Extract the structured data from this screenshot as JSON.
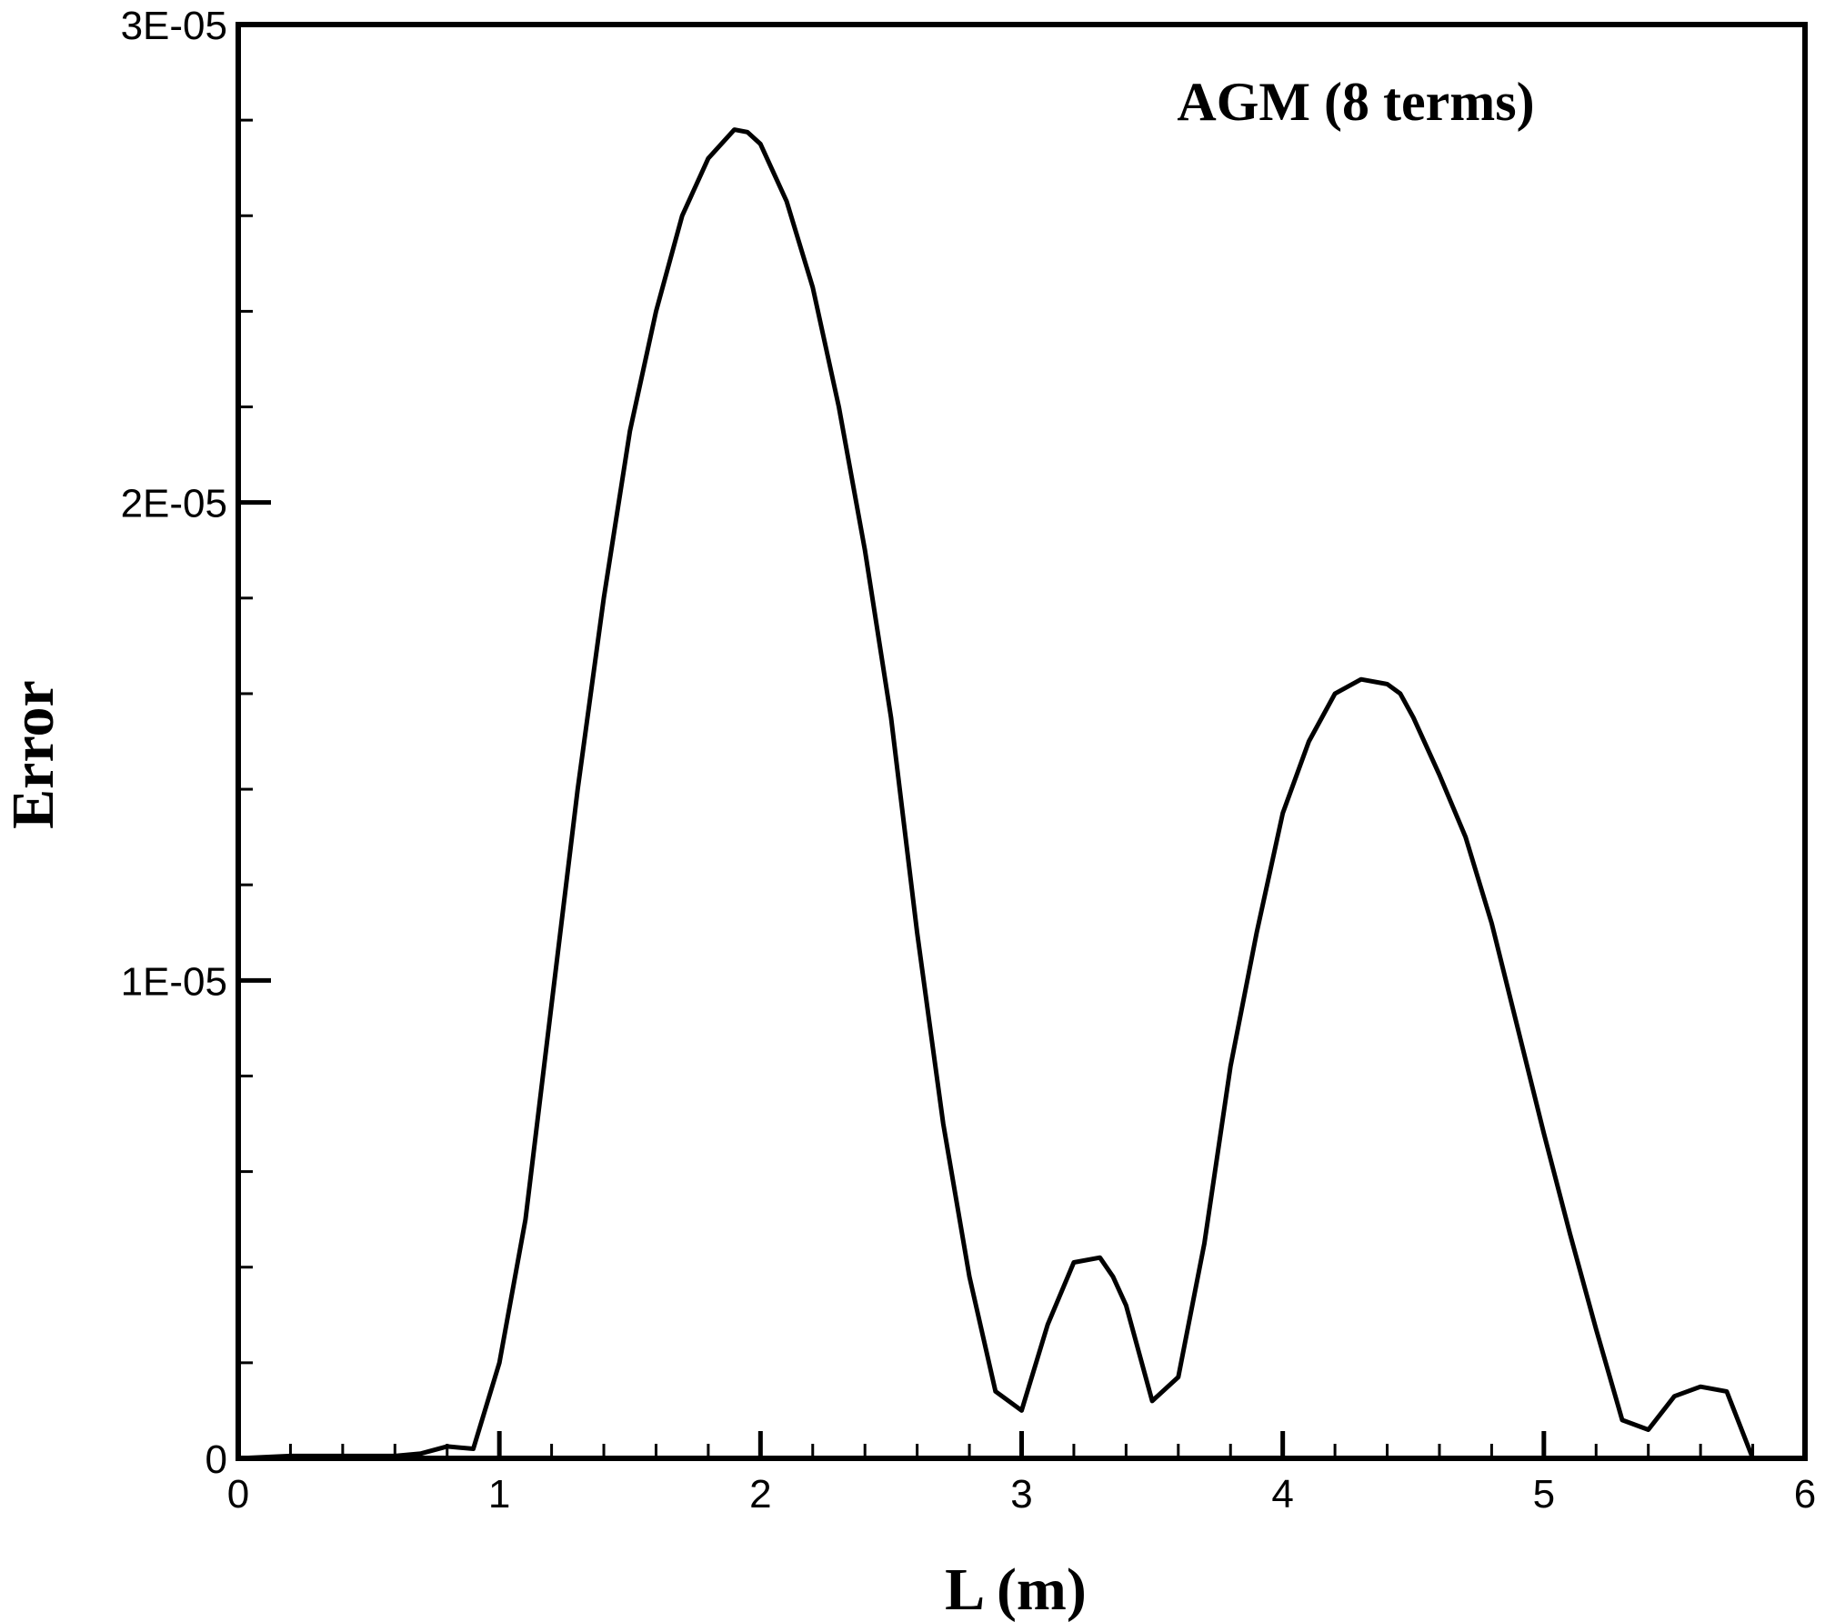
{
  "chart_data": {
    "type": "line",
    "title": "",
    "annotation": "AGM (8 terms)",
    "xlabel": "L (m)",
    "ylabel": "Error",
    "xlim": [
      0,
      6
    ],
    "ylim": [
      0,
      3e-05
    ],
    "xticks": [
      0,
      1,
      2,
      3,
      4,
      5,
      6
    ],
    "xtick_labels": [
      "0",
      "1",
      "2",
      "3",
      "4",
      "5",
      "6"
    ],
    "yticks": [
      0,
      1e-05,
      2e-05,
      3e-05
    ],
    "ytick_labels": [
      "0",
      "1E-05",
      "2E-05",
      "3E-05"
    ],
    "x_minor_step": 0.2,
    "y_minor_step": 2e-06,
    "grid": false,
    "legend": "none",
    "series": [
      {
        "color": "#000000",
        "x": [
          0,
          0.2,
          0.4,
          0.6,
          0.7,
          0.8,
          0.9,
          1.0,
          1.1,
          1.2,
          1.3,
          1.4,
          1.5,
          1.6,
          1.7,
          1.8,
          1.9,
          1.95,
          2.0,
          2.1,
          2.2,
          2.3,
          2.4,
          2.5,
          2.6,
          2.7,
          2.8,
          2.9,
          3.0,
          3.1,
          3.2,
          3.3,
          3.35,
          3.4,
          3.5,
          3.6,
          3.7,
          3.8,
          3.9,
          4.0,
          4.1,
          4.2,
          4.3,
          4.4,
          4.45,
          4.5,
          4.6,
          4.7,
          4.8,
          4.9,
          5.0,
          5.1,
          5.2,
          5.3,
          5.4,
          5.5,
          5.6,
          5.7,
          5.8,
          5.9,
          6.0
        ],
        "y": [
          0,
          5e-08,
          5e-08,
          5e-08,
          1e-07,
          2.5e-07,
          2e-07,
          2e-06,
          5e-06,
          9.5e-06,
          1.4e-05,
          1.8e-05,
          2.15e-05,
          2.4e-05,
          2.6e-05,
          2.72e-05,
          2.78e-05,
          2.775e-05,
          2.75e-05,
          2.63e-05,
          2.45e-05,
          2.2e-05,
          1.9e-05,
          1.55e-05,
          1.1e-05,
          7e-06,
          3.8e-06,
          1.4e-06,
          1e-06,
          2.8e-06,
          4.1e-06,
          4.2e-06,
          3.8e-06,
          3.2e-06,
          1.2e-06,
          1.7e-06,
          4.5e-06,
          8.2e-06,
          1.1e-05,
          1.35e-05,
          1.5e-05,
          1.6e-05,
          1.63e-05,
          1.62e-05,
          1.6e-05,
          1.55e-05,
          1.43e-05,
          1.3e-05,
          1.12e-05,
          9e-06,
          6.8e-06,
          4.7e-06,
          2.7e-06,
          8e-07,
          6e-07,
          1.3e-06,
          1.5e-06,
          1.4e-06,
          0,
          0,
          0
        ]
      }
    ]
  }
}
